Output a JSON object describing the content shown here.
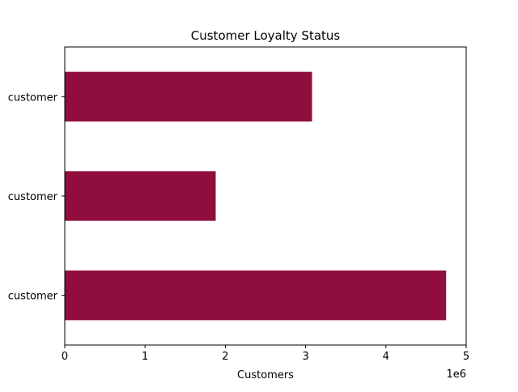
{
  "chart_data": {
    "type": "bar",
    "orientation": "horizontal",
    "title": "Customer Loyalty Status",
    "xlabel": "Customers",
    "ylabel": "",
    "x_offset_label": "1e6",
    "categories": [
      " customer",
      " customer",
      " customer"
    ],
    "values": [
      4750000,
      1880000,
      3080000
    ],
    "xlim": [
      0,
      5000000
    ],
    "x_ticks": [
      0,
      1000000,
      2000000,
      3000000,
      4000000,
      5000000
    ],
    "x_tick_labels": [
      "0",
      "1",
      "2",
      "3",
      "4",
      "5"
    ],
    "grid": false,
    "legend": "none",
    "bar_color": "#8f0e3d"
  }
}
